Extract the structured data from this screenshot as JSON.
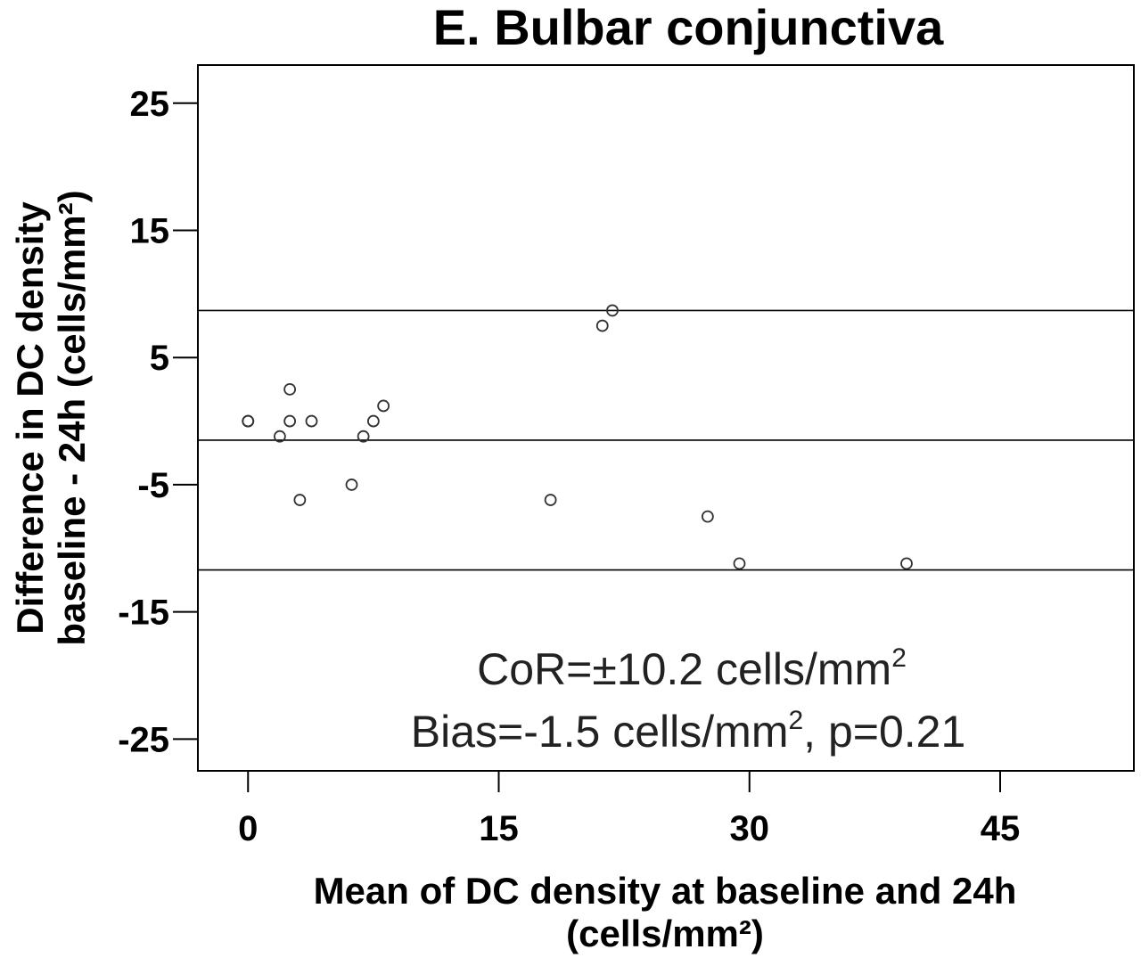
{
  "chart_data": {
    "type": "scatter",
    "title": "E. Bulbar conjunctiva",
    "xlabel_line1": "Mean of DC density at baseline and 24h",
    "xlabel_line2": "(cells/mm²)",
    "ylabel_line1": "Difference in DC density",
    "ylabel_line2": "baseline - 24h (cells/mm²)",
    "xlim": [
      -3,
      53
    ],
    "ylim": [
      -27.5,
      28
    ],
    "xticks": [
      0,
      15,
      30,
      45
    ],
    "yticks": [
      25,
      15,
      5,
      -5,
      -15,
      -25
    ],
    "x_tick_labels": [
      "0",
      "15",
      "30",
      "45"
    ],
    "y_tick_labels": [
      "25",
      "15",
      "5",
      "-5",
      "-15",
      "-25"
    ],
    "grid": false,
    "reference_lines": [
      {
        "y": 8.7
      },
      {
        "y": -1.5
      },
      {
        "y": -11.7
      }
    ],
    "points": [
      {
        "x": 0,
        "y": 0
      },
      {
        "x": 0,
        "y": 0
      },
      {
        "x": 1.9,
        "y": -1.2
      },
      {
        "x": 2.5,
        "y": 2.5
      },
      {
        "x": 2.5,
        "y": 0
      },
      {
        "x": 3.1,
        "y": -6.2
      },
      {
        "x": 3.8,
        "y": 0
      },
      {
        "x": 6.2,
        "y": -5
      },
      {
        "x": 6.9,
        "y": -1.2
      },
      {
        "x": 7.5,
        "y": 0
      },
      {
        "x": 8.1,
        "y": 1.2
      },
      {
        "x": 18.1,
        "y": -6.2
      },
      {
        "x": 21.2,
        "y": 7.5
      },
      {
        "x": 21.8,
        "y": 8.7
      },
      {
        "x": 27.5,
        "y": -7.5
      },
      {
        "x": 29.4,
        "y": -11.2
      },
      {
        "x": 39.4,
        "y": -11.2
      }
    ],
    "annotations": {
      "line1_main": "CoR=±10.2 cells/mm",
      "line1_sup": "2",
      "line2_main": "Bias=-1.5 cells/mm",
      "line2_sup": "2",
      "line2_tail": ", p=0.21"
    },
    "colors": {
      "axis": "#000000",
      "marker_stroke": "#333333",
      "reference_line": "#000000"
    }
  }
}
